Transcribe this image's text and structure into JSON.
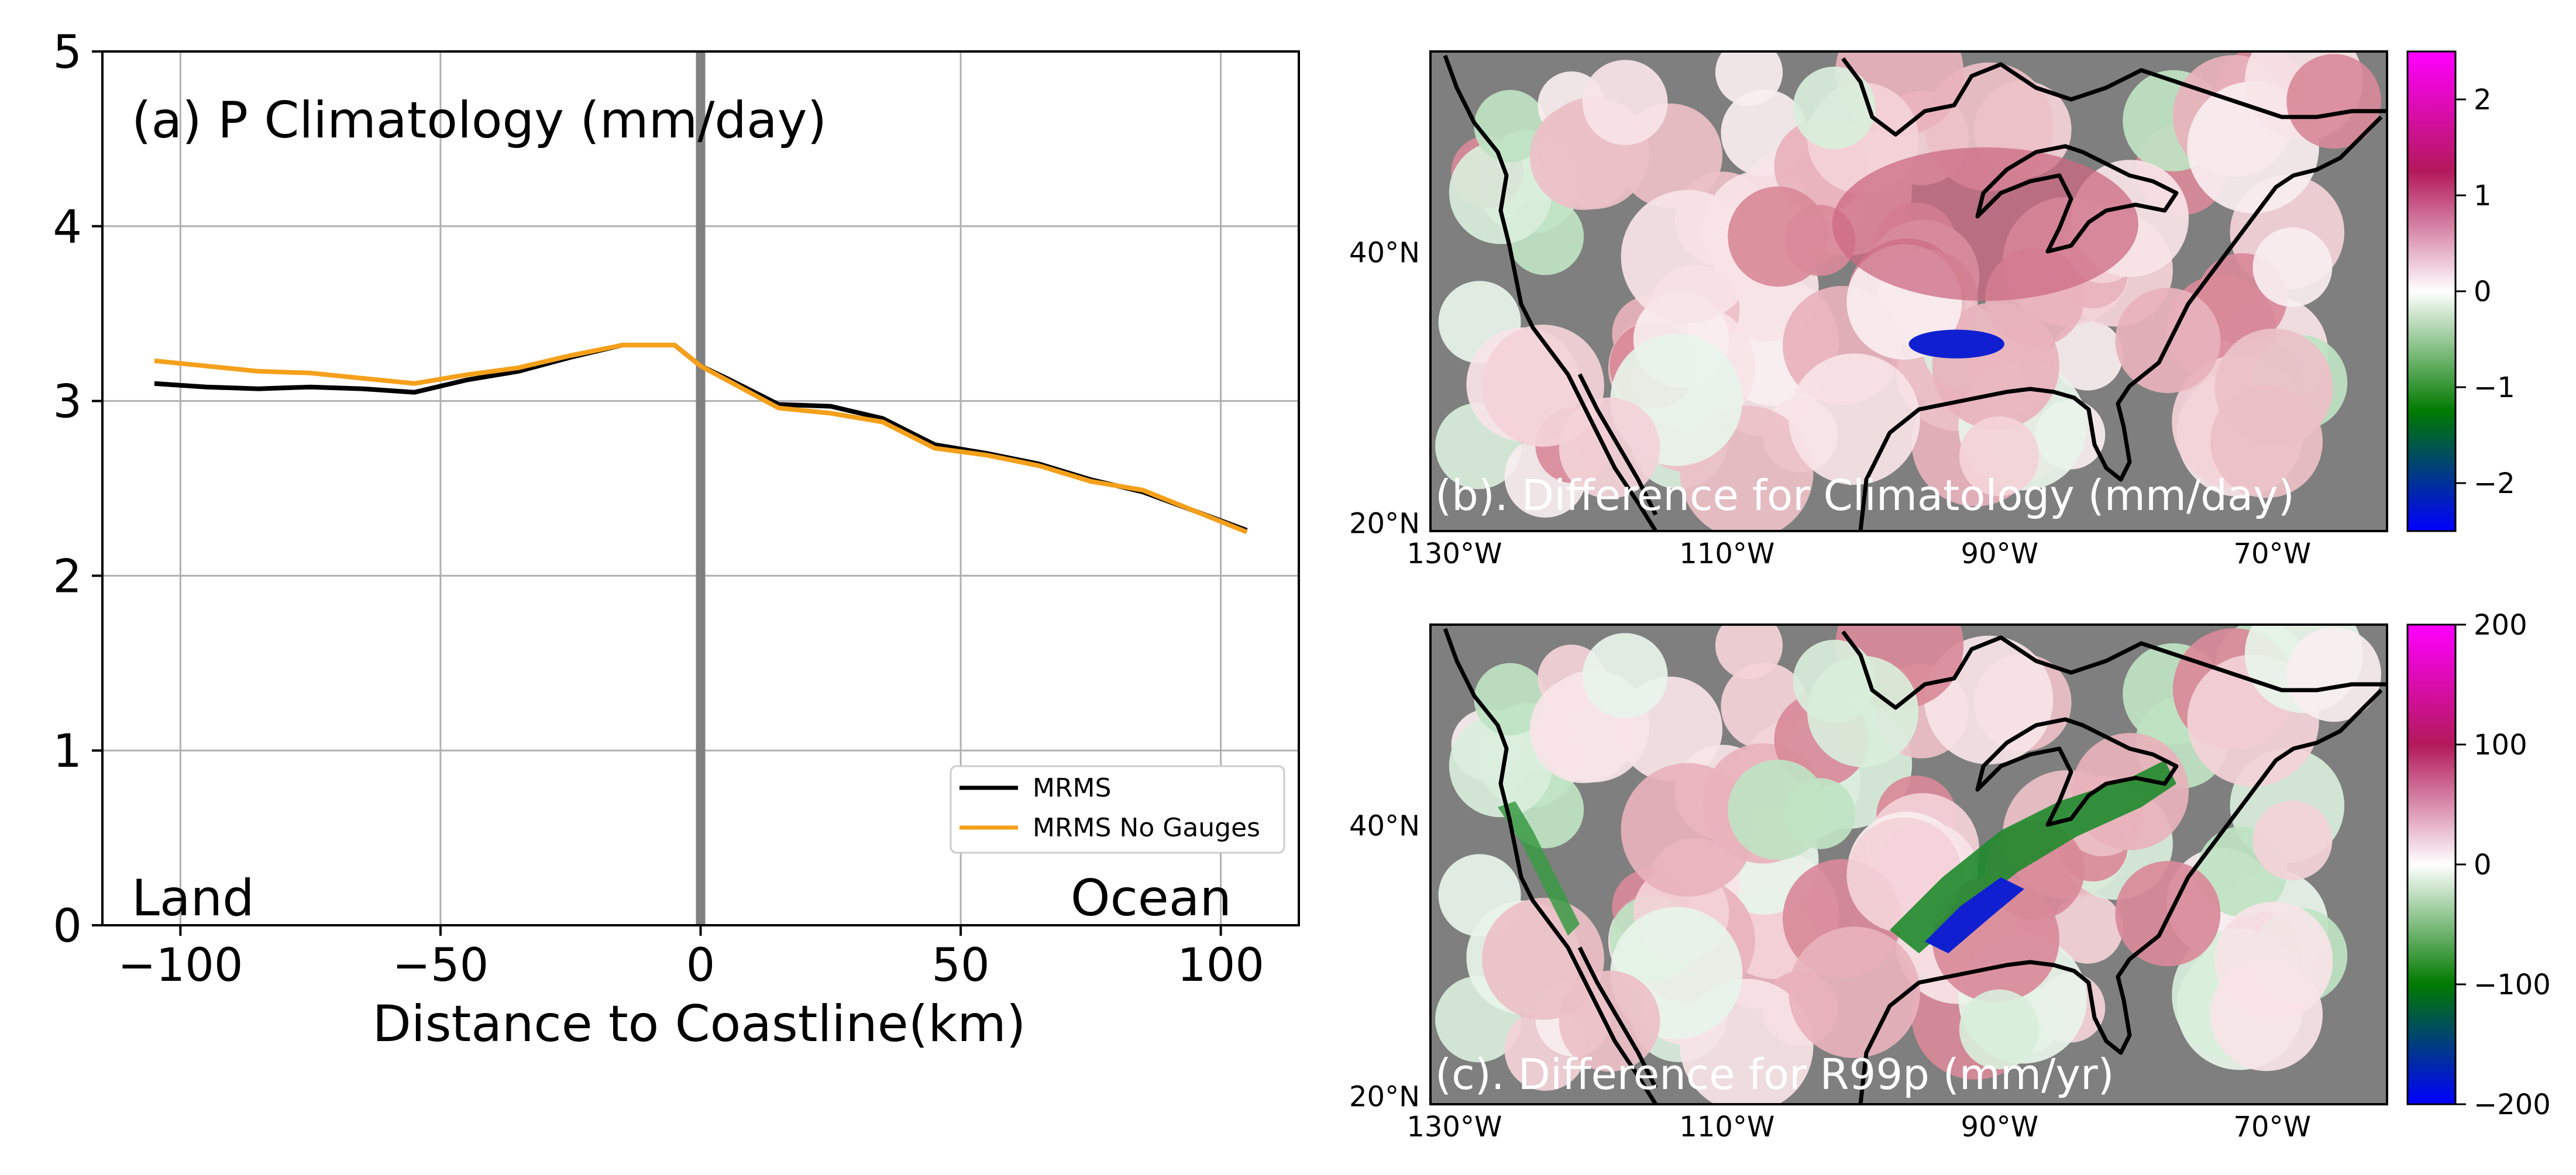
{
  "chart_data": [
    {
      "type": "line",
      "title": "(a) P Climatology (mm/day)",
      "xlabel": "Distance to Coastline(km)",
      "ylabel": "",
      "xlim": [
        -115,
        115
      ],
      "ylim": [
        0,
        5
      ],
      "xticks": [
        -100,
        -50,
        0,
        50,
        100
      ],
      "xtick_labels": [
        "−100",
        "−50",
        "0",
        "50",
        "100"
      ],
      "yticks": [
        0,
        1,
        2,
        3,
        4,
        5
      ],
      "ytick_labels": [
        "0",
        "1",
        "2",
        "3",
        "4",
        "5"
      ],
      "grid": true,
      "coastline_marker_x": 0,
      "annotations": {
        "land": "Land",
        "ocean": "Ocean"
      },
      "legend_position": "lower-right",
      "x": [
        -105,
        -95,
        -85,
        -75,
        -65,
        -55,
        -45,
        -35,
        -25,
        -15,
        -5,
        0,
        5,
        15,
        25,
        35,
        45,
        55,
        65,
        75,
        85,
        95,
        105
      ],
      "series": [
        {
          "name": "MRMS",
          "color": "#000000",
          "values": [
            3.1,
            3.08,
            3.07,
            3.08,
            3.07,
            3.05,
            3.12,
            3.17,
            3.25,
            3.32,
            3.32,
            3.2,
            3.13,
            2.98,
            2.97,
            2.9,
            2.75,
            2.7,
            2.64,
            2.55,
            2.48,
            2.37,
            2.26
          ]
        },
        {
          "name": "MRMS No Gauges",
          "color": "#f5a01a",
          "values": [
            3.23,
            3.2,
            3.17,
            3.16,
            3.13,
            3.1,
            3.15,
            3.19,
            3.26,
            3.32,
            3.32,
            3.2,
            3.12,
            2.96,
            2.93,
            2.88,
            2.73,
            2.69,
            2.63,
            2.54,
            2.49,
            2.37,
            2.25
          ]
        }
      ]
    },
    {
      "type": "heatmap",
      "title": "(b). Difference for Climatology (mm/day)",
      "xtick_labels": [
        "130°W",
        "110°W",
        "90°W",
        "70°W"
      ],
      "ytick_labels": [
        "40°N",
        "20°N"
      ],
      "colorbar": {
        "ticks": [
          2,
          1,
          0,
          -1,
          -2
        ],
        "tick_labels": [
          "2",
          "1",
          "0",
          "−1",
          "−2"
        ],
        "range": [
          -2.5,
          2.5
        ]
      },
      "colormap": [
        "#ff00ff",
        "#b3195a",
        "#ffffff",
        "#007a00",
        "#0000ff"
      ]
    },
    {
      "type": "heatmap",
      "title": "(c). Difference for R99p (mm/yr)",
      "xtick_labels": [
        "130°W",
        "110°W",
        "90°W",
        "70°W"
      ],
      "ytick_labels": [
        "40°N",
        "20°N"
      ],
      "colorbar": {
        "ticks": [
          200,
          100,
          0,
          -100,
          -200
        ],
        "tick_labels": [
          "200",
          "100",
          "0",
          "−100",
          "−200"
        ],
        "range": [
          -200,
          200
        ]
      },
      "colormap": [
        "#ff00ff",
        "#b3195a",
        "#ffffff",
        "#007a00",
        "#0000ff"
      ]
    }
  ],
  "colors": {
    "map_background": "#7f7f7f",
    "grid": "#b0b0b0",
    "coast_marker": "#808080"
  }
}
